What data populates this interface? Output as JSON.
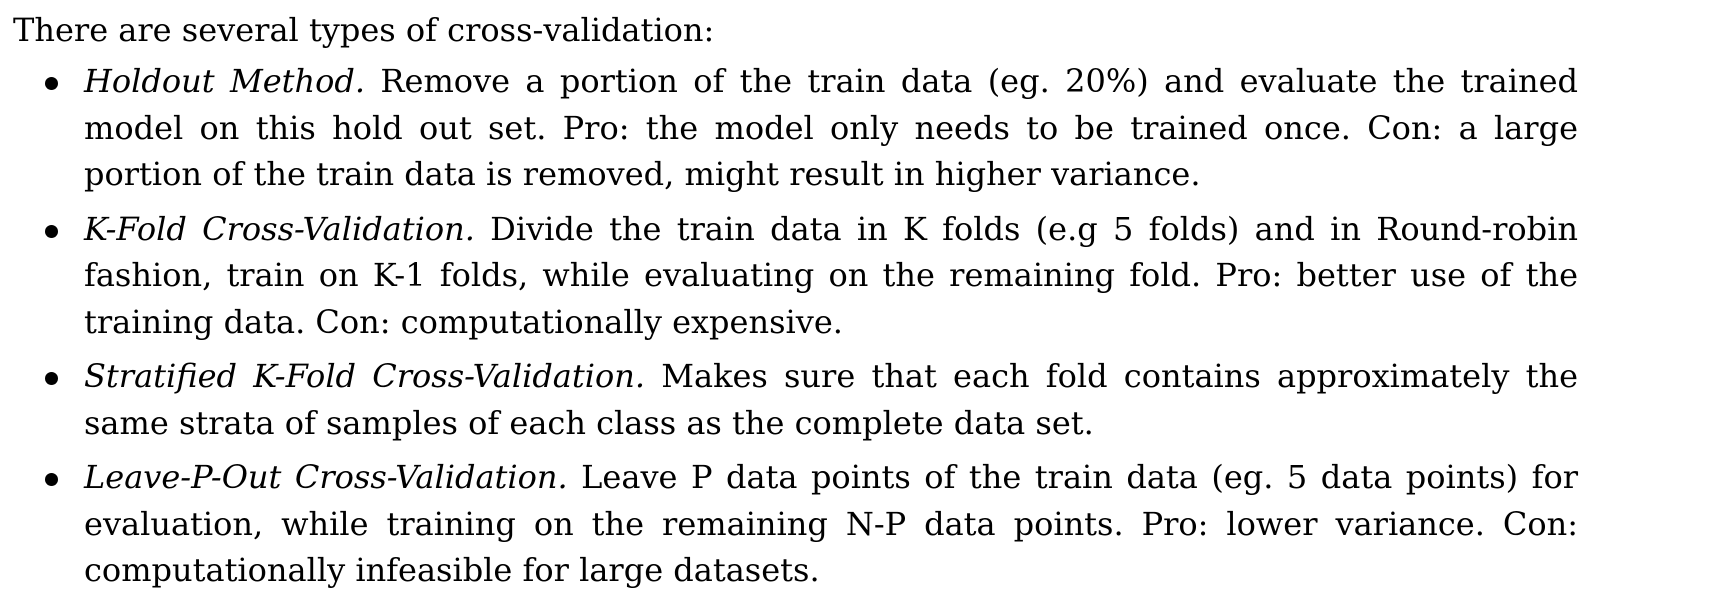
{
  "intro": "There are several types of cross-validation:",
  "items": [
    {
      "term": "Holdout Method.",
      "text": "Remove a portion of the train data (eg. 20%) and evaluate the trained model on this hold out set. Pro: the model only needs to be trained once. Con: a large portion of the train data is removed, might result in higher variance."
    },
    {
      "term": "K-Fold Cross-Validation.",
      "text": "Divide the train data in K folds (e.g 5 folds) and in Round-robin fashion, train on K-1 folds, while evaluating on the remaining fold. Pro: better use of the training data. Con: computationally expensive."
    },
    {
      "term": "Stratified K-Fold Cross-Validation.",
      "text": "Makes sure that each fold contains approximately the same strata of samples of each class as the complete data set."
    },
    {
      "term": "Leave-P-Out Cross-Validation.",
      "text": "Leave P data points of the train data (eg. 5 data points) for evaluation, while training on the remaining N-P data points. Pro: lower variance. Con: computationally infeasible for large datasets."
    }
  ]
}
